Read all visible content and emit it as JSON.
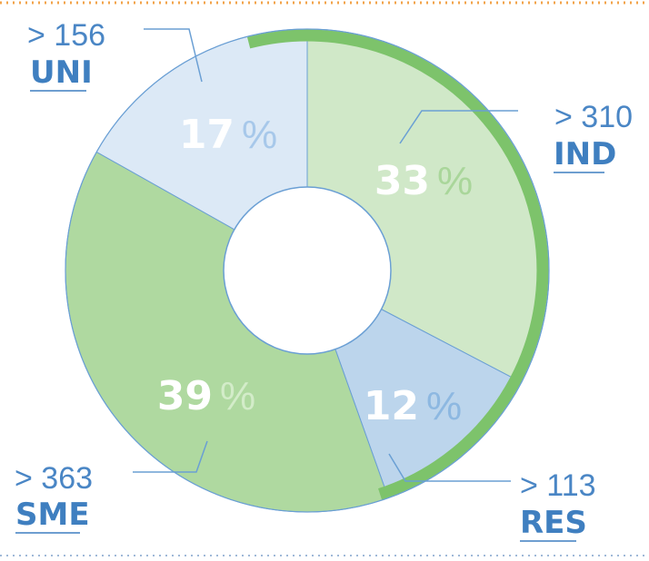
{
  "chart_data": {
    "type": "pie",
    "donut": true,
    "start_at": "top",
    "direction": "clockwise",
    "colors": {
      "segment_edge": "#6a9fd4",
      "leader": "#6a9fd4",
      "label": "#3f7fc0",
      "arc_accent": "#7dc36b",
      "hole": "#ffffff",
      "border_top": "#f2a34a",
      "border_bottom": "#9fb9d8"
    },
    "slices": [
      {
        "id": "ind",
        "label": "IND",
        "value": 310,
        "value_text": "> 310",
        "percent": 33,
        "percent_text": "33",
        "percent_symbol": "%",
        "color": "#d0e8c8",
        "pct_symbol_color": "#a9d69a"
      },
      {
        "id": "res",
        "label": "RES",
        "value": 113,
        "value_text": "> 113",
        "percent": 12,
        "percent_text": "12",
        "percent_symbol": "%",
        "color": "#bcd5ec",
        "pct_symbol_color": "#8db8e1"
      },
      {
        "id": "sme",
        "label": "SME",
        "value": 363,
        "value_text": "> 363",
        "percent": 39,
        "percent_text": "39",
        "percent_symbol": "%",
        "color": "#afd9a0",
        "pct_symbol_color": "#d3ecc9"
      },
      {
        "id": "uni",
        "label": "UNI",
        "value": 156,
        "value_text": "> 156",
        "percent": 17,
        "percent_text": "17",
        "percent_symbol": "%",
        "color": "#dce9f6",
        "pct_symbol_color": "#a7c8ea"
      }
    ],
    "accent_arc": {
      "from_percent": 96,
      "to_percent": 45
    }
  }
}
